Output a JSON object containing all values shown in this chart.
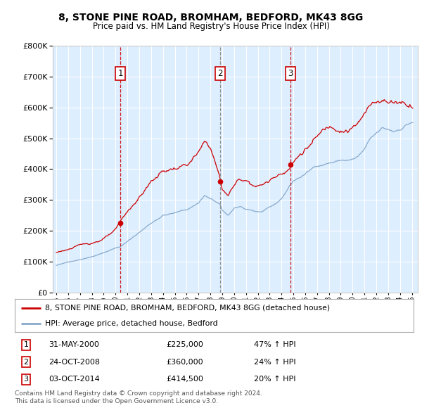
{
  "title": "8, STONE PINE ROAD, BROMHAM, BEDFORD, MK43 8GG",
  "subtitle": "Price paid vs. HM Land Registry's House Price Index (HPI)",
  "legend_property": "8, STONE PINE ROAD, BROMHAM, BEDFORD, MK43 8GG (detached house)",
  "legend_hpi": "HPI: Average price, detached house, Bedford",
  "footer": "Contains HM Land Registry data © Crown copyright and database right 2024.\nThis data is licensed under the Open Government Licence v3.0.",
  "sales": [
    {
      "num": 1,
      "date": "31-MAY-2000",
      "price": "£225,000",
      "pct": "47% ↑ HPI",
      "year": 2000.42,
      "vline_color": "#cc0000",
      "vline_style": "--"
    },
    {
      "num": 2,
      "date": "24-OCT-2008",
      "price": "£360,000",
      "pct": "24% ↑ HPI",
      "year": 2008.81,
      "vline_color": "#888888",
      "vline_style": "--"
    },
    {
      "num": 3,
      "date": "03-OCT-2014",
      "price": "£414,500",
      "pct": "20% ↑ HPI",
      "year": 2014.75,
      "vline_color": "#cc0000",
      "vline_style": "--"
    }
  ],
  "sale_prices": [
    225000,
    360000,
    414500
  ],
  "property_color": "#cc0000",
  "hpi_color": "#88aacc",
  "plot_bg": "#ddeeff",
  "ylim": [
    0,
    800000
  ],
  "xlim_start": 1994.7,
  "xlim_end": 2025.5
}
